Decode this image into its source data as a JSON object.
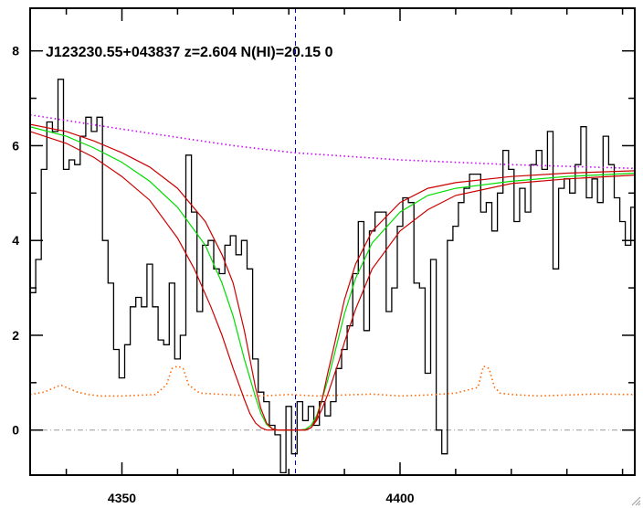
{
  "chart_data": {
    "type": "line",
    "title": "J123230.55+043837 z=2.604 N(HI)=20.15 0",
    "xlabel": "",
    "ylabel": "",
    "xlim": [
      4333.5,
      4442.2
    ],
    "ylim": [
      -0.95,
      8.9
    ],
    "xticks": [
      4350,
      4400
    ],
    "yticks": [
      0,
      2,
      4,
      6,
      8
    ],
    "grid": false,
    "line_center": 4381.2,
    "zero_level": 0,
    "series": [
      {
        "kind": "flux-step",
        "color": "#000000",
        "x": [
          4333.5,
          4334.5,
          4335.5,
          4336.5,
          4337.5,
          4338.5,
          4339.5,
          4340.5,
          4341.5,
          4342.5,
          4343.5,
          4344.5,
          4345.5,
          4346.5,
          4347.5,
          4348.5,
          4349.5,
          4350.5,
          4351.5,
          4352.5,
          4353.5,
          4354.5,
          4355.5,
          4356.5,
          4357.5,
          4358.5,
          4359.5,
          4360.5,
          4361.5,
          4362.5,
          4363.5,
          4364.5,
          4365.5,
          4366.5,
          4367.5,
          4368.5,
          4369.5,
          4370.5,
          4371.5,
          4372.5,
          4373.5,
          4374.5,
          4375.5,
          4376.5,
          4377.5,
          4378.5,
          4379.5,
          4380.5,
          4381.5,
          4382.5,
          4383.5,
          4384.5,
          4385.5,
          4386.5,
          4387.5,
          4388.5,
          4389.5,
          4390.5,
          4391.5,
          4392.5,
          4393.5,
          4394.5,
          4395.5,
          4396.5,
          4397.5,
          4398.5,
          4399.5,
          4400.5,
          4401.5,
          4402.5,
          4403.5,
          4404.5,
          4405.5,
          4406.5,
          4407.5,
          4408.5,
          4409.5,
          4410.5,
          4411.5,
          4412.5,
          4413.5,
          4414.5,
          4415.5,
          4416.5,
          4417.5,
          4418.5,
          4419.5,
          4420.5,
          4421.5,
          4422.5,
          4423.5,
          4424.5,
          4425.5,
          4426.5,
          4427.5,
          4428.5,
          4429.5,
          4430.5,
          4431.5,
          4432.5,
          4433.5,
          4434.5,
          4435.5,
          4436.5,
          4437.5,
          4438.5,
          4439.5,
          4440.5,
          4441.5
        ],
        "y": [
          2.9,
          3.6,
          5.5,
          6.5,
          6.3,
          7.4,
          5.5,
          5.7,
          5.6,
          6.2,
          6.6,
          6.3,
          6.6,
          4.0,
          3.1,
          1.7,
          1.1,
          1.8,
          2.6,
          2.8,
          2.6,
          3.5,
          2.6,
          1.9,
          1.8,
          3.1,
          1.5,
          2.0,
          5.8,
          4.6,
          2.5,
          3.9,
          4.0,
          3.4,
          3.3,
          3.9,
          4.1,
          3.7,
          4.0,
          3.4,
          1.5,
          0.8,
          0.6,
          0.1,
          -0.1,
          -0.9,
          0.5,
          -0.5,
          0.6,
          0.2,
          0.5,
          0.1,
          0.6,
          0.3,
          0.6,
          1.3,
          1.7,
          2.2,
          3.3,
          4.4,
          2.1,
          4.2,
          4.6,
          4.6,
          2.5,
          3.0,
          4.3,
          4.9,
          4.8,
          3.1,
          3.0,
          1.2,
          3.6,
          0.0,
          -0.5,
          4.0,
          4.3,
          4.8,
          5.1,
          5.4,
          5.4,
          4.6,
          4.8,
          4.2,
          5.0,
          5.9,
          5.5,
          4.4,
          5.1,
          4.6,
          5.6,
          5.9,
          5.5,
          6.3,
          3.4,
          5.1,
          5.3,
          5.0,
          5.6,
          6.4,
          4.9,
          5.3,
          4.8,
          6.2,
          5.6,
          4.9,
          4.4,
          3.9,
          4.7
        ]
      },
      {
        "kind": "continuum",
        "color": "#cc00ff",
        "style": "dotted",
        "x": [
          4333.5,
          4350,
          4370,
          4381,
          4400,
          4420,
          4442.2
        ],
        "y": [
          6.65,
          6.35,
          6.0,
          5.85,
          5.7,
          5.6,
          5.52
        ]
      },
      {
        "kind": "error-spectrum",
        "color": "#ff6600",
        "style": "dotted",
        "x": [
          4333.5,
          4336,
          4338,
          4339,
          4340,
          4342,
          4344,
          4346,
          4350,
          4356,
          4358,
          4359,
          4360,
          4361,
          4362,
          4364,
          4370,
          4375,
          4380,
          4385,
          4390,
          4395,
          4400,
          4405,
          4410,
          4414,
          4415,
          4416,
          4417,
          4418,
          4420,
          4425,
          4430,
          4435,
          4442.2
        ],
        "y": [
          0.75,
          0.8,
          0.9,
          0.95,
          0.9,
          0.8,
          0.75,
          0.72,
          0.72,
          0.75,
          0.95,
          1.3,
          1.35,
          1.3,
          0.95,
          0.78,
          0.74,
          0.72,
          0.75,
          0.72,
          0.74,
          0.76,
          0.72,
          0.74,
          0.78,
          0.9,
          1.35,
          1.3,
          0.9,
          0.78,
          0.75,
          0.72,
          0.74,
          0.76,
          0.75
        ]
      },
      {
        "kind": "fit-best",
        "color": "#00dd00",
        "x": [
          4333.5,
          4340,
          4345,
          4350,
          4355,
          4360,
          4365,
          4368,
          4370,
          4372,
          4374,
          4375,
          4376,
          4377,
          4378,
          4379,
          4380,
          4381,
          4382,
          4383,
          4384,
          4385,
          4386,
          4387,
          4388,
          4390,
          4392,
          4395,
          4400,
          4405,
          4410,
          4420,
          4430,
          4442.2
        ],
        "y": [
          6.4,
          6.2,
          5.95,
          5.65,
          5.25,
          4.7,
          3.9,
          3.1,
          2.4,
          1.5,
          0.7,
          0.35,
          0.12,
          0.03,
          0.0,
          0.0,
          0.0,
          0.0,
          0.0,
          0.02,
          0.1,
          0.3,
          0.65,
          1.05,
          1.5,
          2.45,
          3.2,
          3.95,
          4.6,
          4.95,
          5.1,
          5.25,
          5.35,
          5.42
        ]
      },
      {
        "kind": "fit-bound-upper",
        "color": "#cc0000",
        "x": [
          4333.5,
          4340,
          4345,
          4350,
          4355,
          4360,
          4365,
          4368,
          4370,
          4372,
          4373,
          4374,
          4375,
          4376,
          4377,
          4378,
          4379,
          4380,
          4381,
          4382,
          4383,
          4384,
          4385,
          4386,
          4387,
          4388,
          4390,
          4392,
          4395,
          4400,
          4405,
          4410,
          4420,
          4430,
          4442.2
        ],
        "y": [
          6.45,
          6.3,
          6.1,
          5.85,
          5.55,
          5.1,
          4.4,
          3.7,
          3.1,
          2.1,
          1.5,
          0.9,
          0.45,
          0.15,
          0.03,
          0.0,
          0.0,
          0.0,
          0.0,
          0.0,
          0.0,
          0.05,
          0.25,
          0.65,
          1.2,
          1.7,
          2.75,
          3.5,
          4.2,
          4.8,
          5.1,
          5.22,
          5.35,
          5.42,
          5.47
        ]
      },
      {
        "kind": "fit-bound-lower",
        "color": "#cc0000",
        "x": [
          4333.5,
          4340,
          4345,
          4350,
          4355,
          4360,
          4363,
          4366,
          4368,
          4370,
          4372,
          4373,
          4374,
          4375,
          4376,
          4377,
          4378,
          4379,
          4380,
          4381,
          4382,
          4383,
          4384,
          4385,
          4386,
          4387,
          4388,
          4389,
          4390,
          4392,
          4395,
          4400,
          4405,
          4410,
          4420,
          4430,
          4442.2
        ],
        "y": [
          6.3,
          6.05,
          5.75,
          5.35,
          4.85,
          4.05,
          3.4,
          2.6,
          2.0,
          1.3,
          0.65,
          0.35,
          0.15,
          0.05,
          0.0,
          0.0,
          0.0,
          0.0,
          0.0,
          0.0,
          0.0,
          0.0,
          0.05,
          0.2,
          0.45,
          0.75,
          1.1,
          1.45,
          1.85,
          2.55,
          3.4,
          4.2,
          4.65,
          4.95,
          5.2,
          5.3,
          5.38
        ]
      }
    ]
  }
}
